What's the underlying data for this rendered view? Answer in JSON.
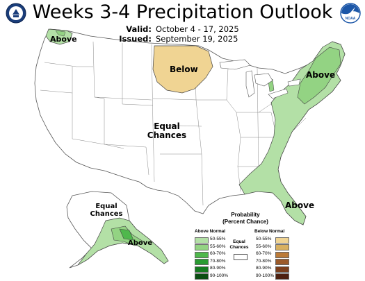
{
  "title": "Weeks 3-4 Precipitation Outlook",
  "valid_label": "Valid:",
  "valid_value": "October 4 - 17, 2025",
  "issued_label": "Issued:",
  "issued_value": "September 19, 2025",
  "logos": {
    "left": "doc-seal-icon",
    "right": "noaa-logo-icon",
    "right_text": "NOAA"
  },
  "regions": {
    "pacific_nw": "Above",
    "north_central": "Below",
    "northeast": "Above",
    "conus_center": [
      "Equal",
      "Chances"
    ],
    "alaska_equal": [
      "Equal",
      "Chances"
    ],
    "alaska_south": "Above",
    "southeast": "Above"
  },
  "legend": {
    "title": [
      "Probability",
      "(Percent Chance)"
    ],
    "above_header": "Above Normal",
    "below_header": "Below Normal",
    "equal_label": [
      "Equal",
      "Chances"
    ],
    "above_items": [
      {
        "label": "50-55%",
        "color": "#b3e0a6"
      },
      {
        "label": "55-60%",
        "color": "#93d383"
      },
      {
        "label": "60-70%",
        "color": "#4fb84c"
      },
      {
        "label": "70-80%",
        "color": "#2a9b32"
      },
      {
        "label": "80-90%",
        "color": "#157a20"
      },
      {
        "label": "90-100%",
        "color": "#0a4d12"
      }
    ],
    "below_items": [
      {
        "label": "50-55%",
        "color": "#f0d493"
      },
      {
        "label": "55-60%",
        "color": "#d8b060"
      },
      {
        "label": "60-70%",
        "color": "#bb7a38"
      },
      {
        "label": "70-80%",
        "color": "#9b5a2a"
      },
      {
        "label": "80-90%",
        "color": "#7a3e1c"
      },
      {
        "label": "90-100%",
        "color": "#4d2010"
      }
    ]
  },
  "colors": {
    "above_light": "#b3e0a6",
    "above_mid": "#93d383",
    "above_dark": "#4fb84c",
    "below_light": "#f0d493",
    "border": "#444444"
  }
}
